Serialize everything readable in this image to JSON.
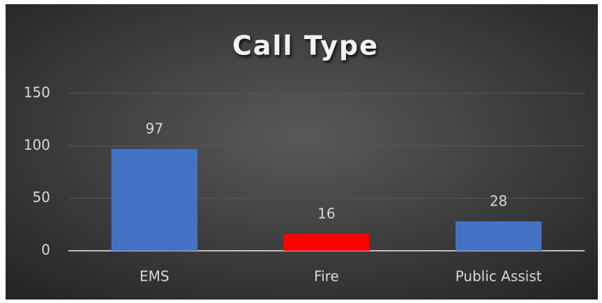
{
  "chart_data": {
    "type": "bar",
    "title": "Call Type",
    "categories": [
      "EMS",
      "Fire",
      "Public Assist"
    ],
    "values": [
      97,
      16,
      28
    ],
    "colors": [
      "#4472c4",
      "#ff0000",
      "#4472c4"
    ],
    "ylim": [
      0,
      150
    ],
    "yticks": [
      0,
      50,
      100,
      150
    ],
    "grid": true,
    "data_labels": true
  }
}
